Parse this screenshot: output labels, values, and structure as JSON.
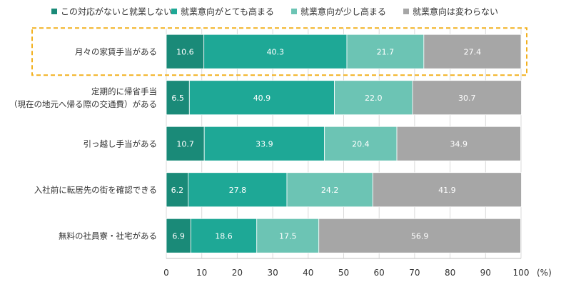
{
  "chart_data": {
    "type": "bar",
    "orientation": "horizontal",
    "stacked": true,
    "categories": [
      [
        "月々の家賃手当がある"
      ],
      [
        "定期的に帰省手当",
        "（現在の地元へ帰る際の交通費）がある"
      ],
      [
        "引っ越し手当がある"
      ],
      [
        "入社前に転居先の街を確認できる"
      ],
      [
        "無料の社員寮・社宅がある"
      ]
    ],
    "series": [
      {
        "name": "この対応がないと就業しない",
        "color": "#1a8a78",
        "values": [
          10.6,
          6.5,
          10.7,
          6.2,
          6.9
        ]
      },
      {
        "name": "就業意向がとても高まる",
        "color": "#1ea896",
        "values": [
          40.3,
          40.9,
          33.9,
          27.8,
          18.6
        ]
      },
      {
        "name": "就業意向が少し高まる",
        "color": "#6cc4b4",
        "values": [
          21.7,
          22.0,
          20.4,
          24.2,
          17.5
        ]
      },
      {
        "name": "就業意向は変わらない",
        "color": "#a6a6a6",
        "values": [
          27.4,
          30.7,
          34.9,
          41.9,
          56.9
        ]
      }
    ],
    "xlim": [
      0,
      100
    ],
    "xticks": [
      0,
      10,
      20,
      30,
      40,
      50,
      60,
      70,
      80,
      90,
      100
    ],
    "unit_label": "(%)",
    "highlight_category": 0,
    "highlight_color": "#f2b01e",
    "legend_position": "top",
    "grid": true
  }
}
